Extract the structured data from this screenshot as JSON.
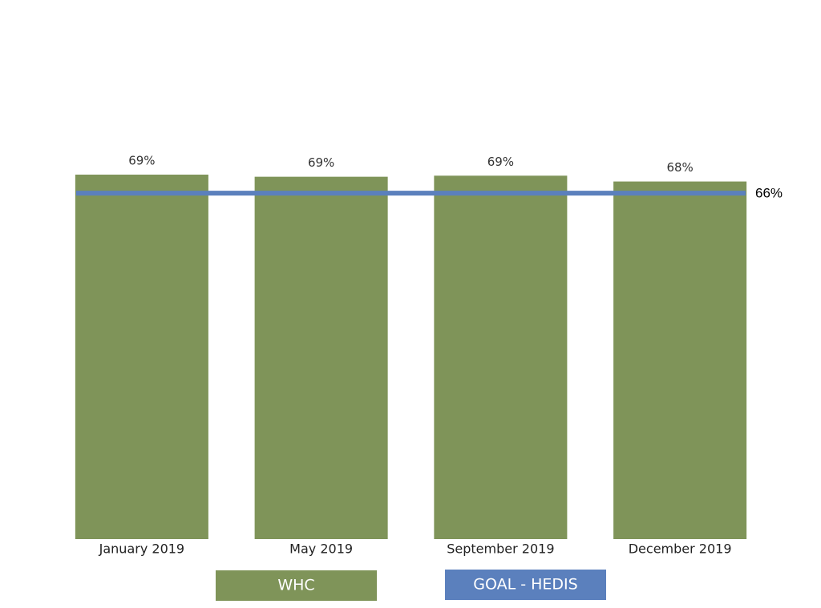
{
  "chart_data": {
    "type": "bar",
    "categories": [
      "January 2019",
      "May 2019",
      "September 2019",
      "December 2019"
    ],
    "series": [
      {
        "name": "WHC",
        "color": "#7f9459",
        "values": [
          69,
          68.6,
          68.8,
          67.7
        ],
        "value_labels": [
          "69%",
          "69%",
          "69%",
          "68%"
        ]
      }
    ],
    "goal": {
      "name": "GOAL - HEDIS",
      "color": "#5b80bd",
      "value": 65.5,
      "value_label": "66%"
    },
    "ylim": [
      0,
      70
    ]
  }
}
